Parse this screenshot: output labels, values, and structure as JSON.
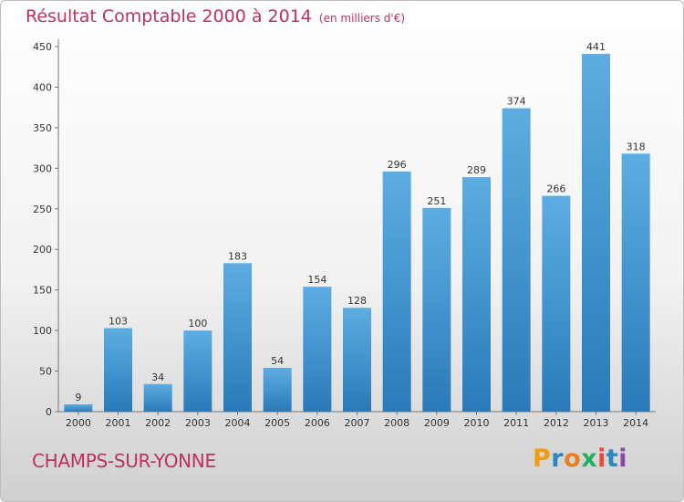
{
  "title": "Résultat Comptable 2000 à 2014",
  "subtitle": "(en milliers d'€)",
  "commune": "CHAMPS-SUR-YONNE",
  "brand": {
    "letters": [
      "P",
      "r",
      "o",
      "x",
      "i",
      "t",
      "i"
    ],
    "colors": [
      "#f39c12",
      "#2e86c1",
      "#e67e22",
      "#27ae60",
      "#e74c3c",
      "#2e86c1",
      "#8e44ad"
    ]
  },
  "colors": {
    "bar_light": "#5dade2",
    "bar_dark": "#2a7ab9",
    "title": "#c03060"
  },
  "chart_data": {
    "type": "bar",
    "title": "Résultat Comptable 2000 à 2014",
    "xlabel": "",
    "ylabel": "",
    "categories": [
      "2000",
      "2001",
      "2002",
      "2003",
      "2004",
      "2005",
      "2006",
      "2007",
      "2008",
      "2009",
      "2010",
      "2011",
      "2012",
      "2013",
      "2014"
    ],
    "values": [
      9,
      103,
      34,
      100,
      183,
      54,
      154,
      128,
      296,
      251,
      289,
      374,
      266,
      441,
      318
    ],
    "ylim": [
      0,
      450
    ],
    "yticks": [
      0,
      50,
      100,
      150,
      200,
      250,
      300,
      350,
      400,
      450
    ],
    "grid": false,
    "legend": "none"
  }
}
